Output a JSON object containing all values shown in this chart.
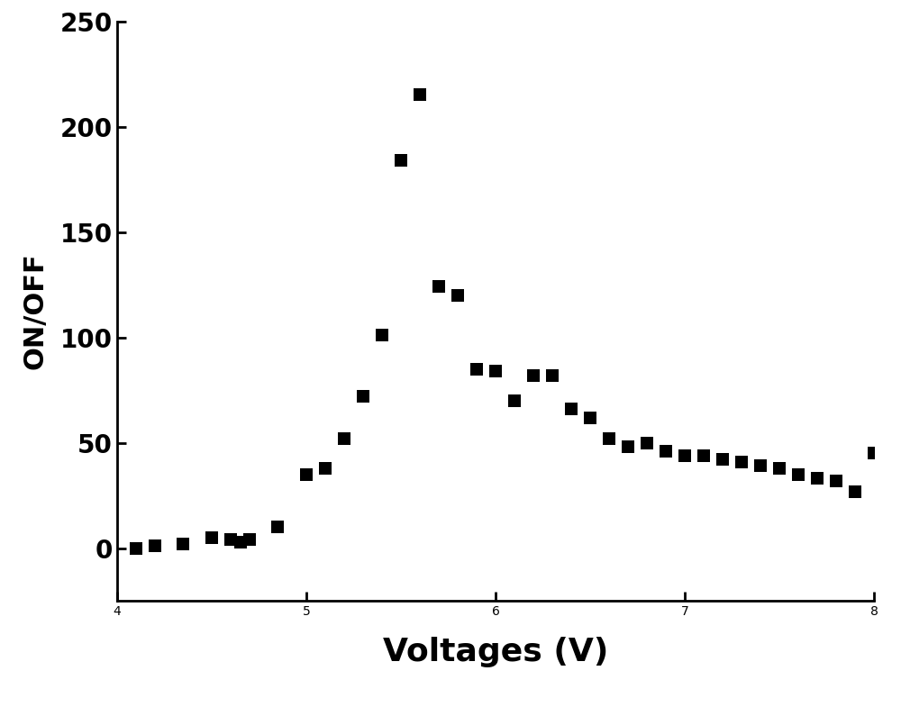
{
  "x": [
    4.1,
    4.2,
    4.35,
    4.5,
    4.6,
    4.65,
    4.7,
    4.85,
    5.0,
    5.1,
    5.2,
    5.3,
    5.4,
    5.5,
    5.6,
    5.7,
    5.8,
    5.9,
    6.0,
    6.1,
    6.2,
    6.3,
    6.4,
    6.5,
    6.6,
    6.7,
    6.8,
    6.9,
    7.0,
    7.1,
    7.2,
    7.3,
    7.4,
    7.5,
    7.6,
    7.7,
    7.8,
    7.9,
    8.0
  ],
  "y": [
    0,
    1,
    2,
    5,
    4,
    3,
    4,
    10,
    35,
    38,
    52,
    72,
    101,
    184,
    215,
    124,
    120,
    85,
    84,
    70,
    82,
    82,
    66,
    62,
    52,
    48,
    50,
    46,
    44,
    44,
    42,
    41,
    39,
    38,
    35,
    33,
    32,
    27,
    45
  ],
  "xlabel": "Voltages (V)",
  "ylabel": "ON/OFF",
  "xlim": [
    4,
    8
  ],
  "ylim": [
    -25,
    250
  ],
  "yticks": [
    0,
    50,
    100,
    150,
    200,
    250
  ],
  "xticks": [
    4,
    5,
    6,
    7,
    8
  ],
  "marker_color": "#000000",
  "marker_size": 90,
  "xlabel_fontsize": 26,
  "ylabel_fontsize": 22,
  "tick_fontsize": 20,
  "background_color": "#ffffff",
  "spine_linewidth": 2.0,
  "bottom_spine_y": -25
}
